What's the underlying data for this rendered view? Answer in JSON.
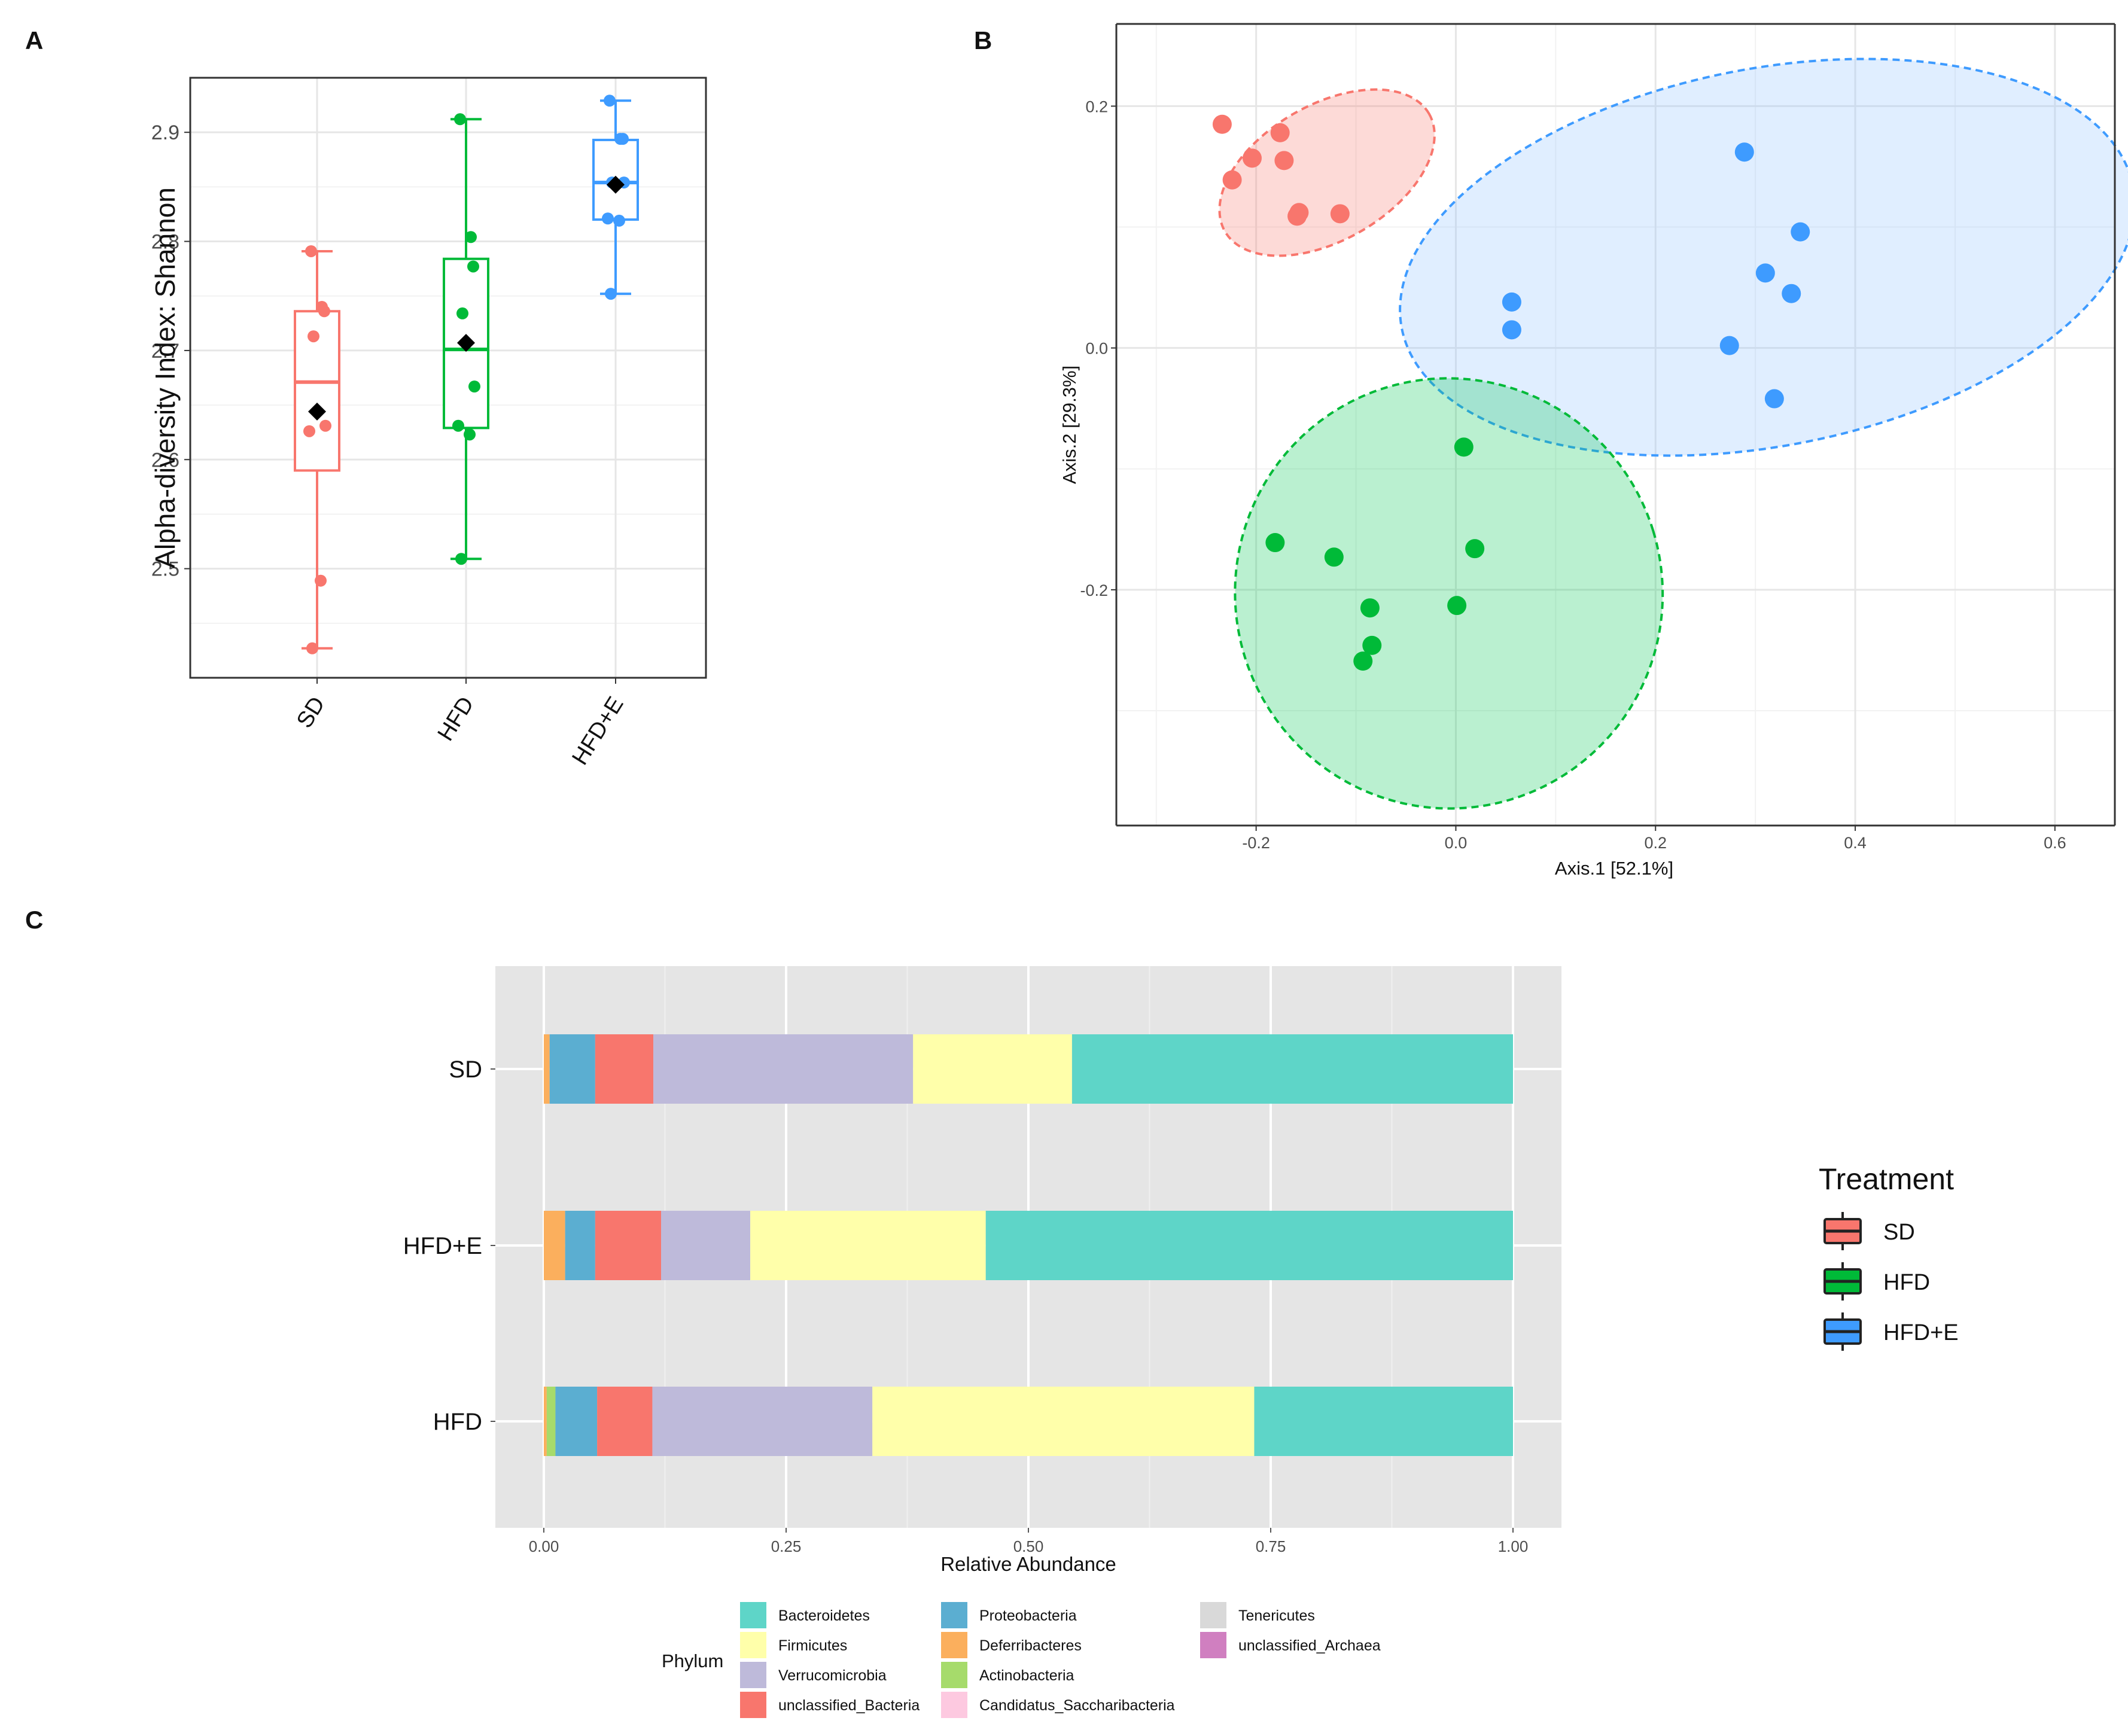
{
  "panels": {
    "a": "A",
    "b": "B",
    "c": "C"
  },
  "colors": {
    "SD": "#F8766D",
    "HFD": "#00BA38",
    "HFD+E": "#3E9BFF",
    "SD_fill": "#F8766D",
    "HFD_fill": "#00C853",
    "HFD+E_fill": "#8EC2FF",
    "grid_major": "#E6E6E6",
    "panel_grey": "#E5E5E5"
  },
  "chart_data": [
    {
      "id": "alpha_diversity",
      "type": "box",
      "title": "",
      "xlabel": "",
      "ylabel": "Alpha-diversity Index: Shannon",
      "categories": [
        "SD",
        "HFD",
        "HFD+E"
      ],
      "ylim": [
        2.4,
        2.95
      ],
      "yticks": [
        "2.5",
        "2.6",
        "2.7",
        "2.8",
        "2.9"
      ],
      "boxes": [
        {
          "group": "SD",
          "min": 2.427,
          "q1": 2.59,
          "median": 2.671,
          "q3": 2.736,
          "max": 2.791,
          "mean": 2.644,
          "points": [
            2.791,
            2.74,
            2.736,
            2.713,
            2.631,
            2.626,
            2.489,
            2.427
          ]
        },
        {
          "group": "HFD",
          "min": 2.509,
          "q1": 2.629,
          "median": 2.701,
          "q3": 2.784,
          "max": 2.912,
          "mean": 2.707,
          "points": [
            2.912,
            2.804,
            2.777,
            2.734,
            2.667,
            2.631,
            2.623,
            2.509
          ]
        },
        {
          "group": "HFD+E",
          "min": 2.752,
          "q1": 2.82,
          "median": 2.854,
          "q3": 2.893,
          "max": 2.929,
          "mean": 2.852,
          "points": [
            2.929,
            2.894,
            2.894,
            2.854,
            2.854,
            2.821,
            2.819,
            2.752
          ]
        }
      ]
    },
    {
      "id": "pcoa",
      "type": "scatter",
      "title": "",
      "xlabel": "Axis.1   [52.1%]",
      "ylabel": "Axis.2   [29.3%]",
      "xlim": [
        -0.34,
        0.66
      ],
      "ylim": [
        -0.395,
        0.268
      ],
      "xticks": [
        "-0.2",
        "0.0",
        "0.2",
        "0.4",
        "0.6"
      ],
      "yticks": [
        "-0.2",
        "0.0",
        "0.2"
      ],
      "series": [
        {
          "name": "SD",
          "ellipse": {
            "cx": -0.129,
            "cy": 0.145,
            "rx": 0.118,
            "ry": 0.056,
            "angle_deg": -30
          },
          "points": [
            [
              -0.234,
              0.185
            ],
            [
              -0.204,
              0.157
            ],
            [
              -0.224,
              0.139
            ],
            [
              -0.176,
              0.178
            ],
            [
              -0.172,
              0.155
            ],
            [
              -0.157,
              0.112
            ],
            [
              -0.159,
              0.109
            ],
            [
              -0.116,
              0.111
            ]
          ]
        },
        {
          "name": "HFD+E",
          "ellipse": {
            "cx": 0.312,
            "cy": 0.075,
            "rx": 0.373,
            "ry": 0.156,
            "angle_deg": -11
          },
          "points": [
            [
              0.289,
              0.162
            ],
            [
              0.345,
              0.096
            ],
            [
              0.31,
              0.062
            ],
            [
              0.336,
              0.045
            ],
            [
              0.056,
              0.038
            ],
            [
              0.056,
              0.015
            ],
            [
              0.274,
              0.002
            ],
            [
              0.319,
              -0.042
            ]
          ]
        },
        {
          "name": "HFD",
          "ellipse": {
            "cx": -0.007,
            "cy": -0.203,
            "rx": 0.214,
            "ry": 0.178,
            "angle_deg": -17
          },
          "points": [
            [
              0.008,
              -0.082
            ],
            [
              -0.181,
              -0.161
            ],
            [
              -0.122,
              -0.173
            ],
            [
              0.019,
              -0.166
            ],
            [
              -0.086,
              -0.215
            ],
            [
              -0.084,
              -0.246
            ],
            [
              -0.093,
              -0.259
            ],
            [
              0.001,
              -0.213
            ]
          ]
        }
      ]
    },
    {
      "id": "phylum_abundance",
      "type": "bar",
      "orientation": "horizontal",
      "stacked": true,
      "title": "",
      "xlabel": "Relative Abundance",
      "ylabel": "",
      "xlim": [
        -0.05,
        1.05
      ],
      "xticks": [
        "0.00",
        "0.25",
        "0.50",
        "0.75",
        "1.00"
      ],
      "categories": [
        "SD",
        "HFD+E",
        "HFD"
      ],
      "series": [
        {
          "name": "Deferribacteres",
          "color": "#FBAF5D",
          "values": [
            0.006,
            0.022,
            0.003
          ]
        },
        {
          "name": "Actinobacteria",
          "color": "#A6DB6B",
          "values": [
            0.0,
            0.0,
            0.009
          ]
        },
        {
          "name": "Proteobacteria",
          "color": "#5BAED1",
          "values": [
            0.047,
            0.031,
            0.043
          ]
        },
        {
          "name": "unclassified_Bacteria",
          "color": "#F8766D",
          "values": [
            0.06,
            0.068,
            0.057
          ]
        },
        {
          "name": "Verrucomicrobia",
          "color": "#BEBADA",
          "values": [
            0.268,
            0.092,
            0.227
          ]
        },
        {
          "name": "Firmicutes",
          "color": "#FFFFAA",
          "values": [
            0.164,
            0.243,
            0.394
          ]
        },
        {
          "name": "Bacteroidetes",
          "color": "#5ED5C8",
          "values": [
            0.455,
            0.544,
            0.267
          ]
        }
      ]
    }
  ],
  "treatment_legend": {
    "title": "Treatment",
    "items": [
      "SD",
      "HFD",
      "HFD+E"
    ]
  },
  "phylum_legend": {
    "title": "Phylum",
    "items": [
      {
        "name": "Bacteroidetes",
        "color": "#5ED5C8"
      },
      {
        "name": "Firmicutes",
        "color": "#FFFFAA"
      },
      {
        "name": "Verrucomicrobia",
        "color": "#BEBADA"
      },
      {
        "name": "unclassified_Bacteria",
        "color": "#F8766D"
      },
      {
        "name": "Proteobacteria",
        "color": "#5BAED1"
      },
      {
        "name": "Deferribacteres",
        "color": "#FBAF5D"
      },
      {
        "name": "Actinobacteria",
        "color": "#A6DB6B"
      },
      {
        "name": "Candidatus_Saccharibacteria",
        "color": "#FDC9E0"
      },
      {
        "name": "Tenericutes",
        "color": "#D9D9D9"
      },
      {
        "name": "unclassified_Archaea",
        "color": "#D07FC0"
      }
    ]
  }
}
